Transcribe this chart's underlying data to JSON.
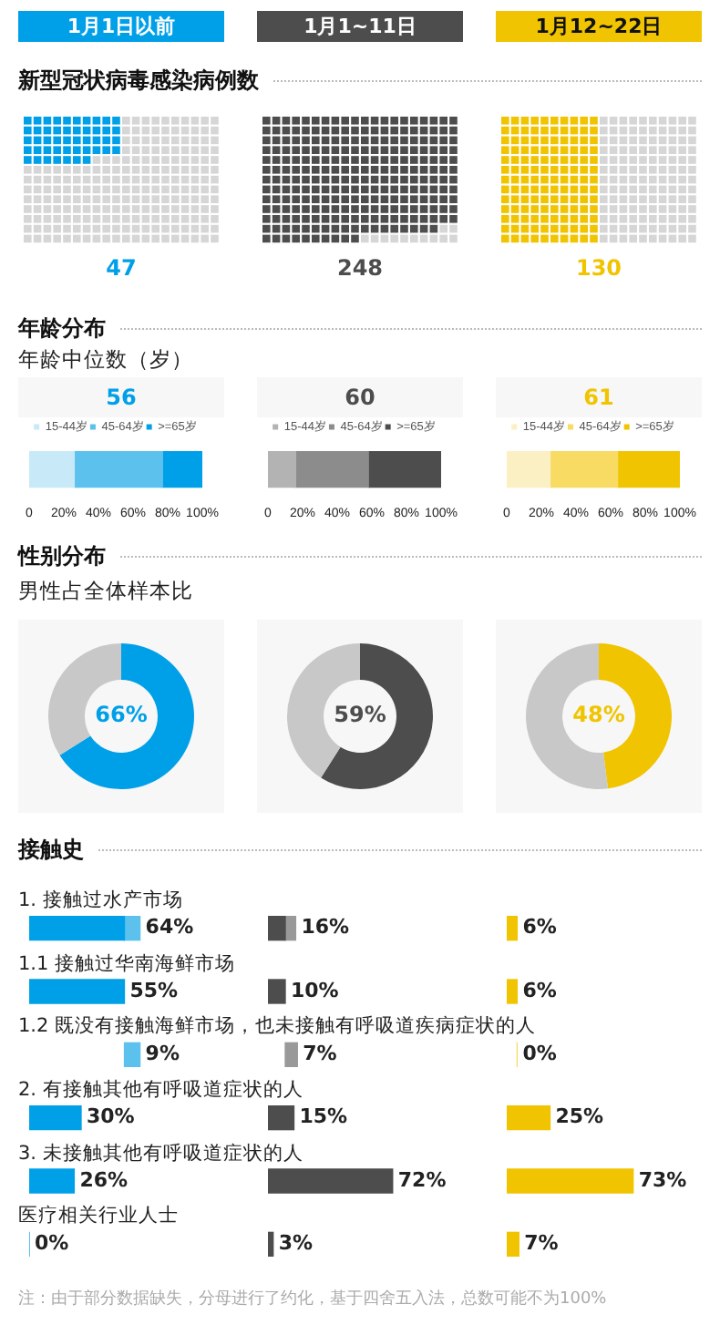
{
  "chart_data": [
    {
      "type": "other",
      "title": "新型冠状病毒感染病例数",
      "categories": [
        "1月1日以前",
        "1月1~11日",
        "1月12~22日"
      ],
      "values": [
        47,
        248,
        130
      ],
      "colors": [
        "#00a0e9",
        "#4d4d4d",
        "#f0c400"
      ],
      "data_labels": true
    },
    {
      "type": "bar",
      "orientation": "horizontal",
      "stacked": true,
      "title": "年龄分布",
      "subtitle": "年龄中位数（岁）",
      "annotations": [
        "56"
      ],
      "categories": [
        null
      ],
      "legend": "top",
      "xlim": [
        0,
        100
      ],
      "xticks": [
        {
          "value": 0,
          "label": "0"
        },
        {
          "value": 20,
          "label": "20%"
        },
        {
          "value": 40,
          "label": "40%"
        },
        {
          "value": 60,
          "label": "60%"
        },
        {
          "value": 80,
          "label": "80%"
        },
        {
          "value": 100,
          "label": "100%"
        }
      ],
      "series": [
        {
          "name": "15-44岁",
          "color": "#c8e9f8",
          "values": [
            26
          ]
        },
        {
          "name": "45-64岁",
          "color": "#5cc1ec",
          "values": [
            51
          ]
        },
        {
          "name": ">=65岁",
          "color": "#00a0e9",
          "values": [
            23
          ]
        }
      ]
    },
    {
      "type": "bar",
      "orientation": "horizontal",
      "stacked": true,
      "annotations": [
        "60"
      ],
      "categories": [
        null
      ],
      "legend": "top",
      "xlim": [
        0,
        100
      ],
      "xticks": [
        {
          "value": 0,
          "label": "0"
        },
        {
          "value": 20,
          "label": "20%"
        },
        {
          "value": 40,
          "label": "40%"
        },
        {
          "value": 60,
          "label": "60%"
        },
        {
          "value": 80,
          "label": "80%"
        },
        {
          "value": 100,
          "label": "100%"
        }
      ],
      "series": [
        {
          "name": "15-44岁",
          "color": "#b3b3b3",
          "values": [
            16
          ]
        },
        {
          "name": "45-64岁",
          "color": "#8c8c8c",
          "values": [
            42
          ]
        },
        {
          "name": ">=65岁",
          "color": "#4d4d4d",
          "values": [
            42
          ]
        }
      ]
    },
    {
      "type": "bar",
      "orientation": "horizontal",
      "stacked": true,
      "annotations": [
        "61"
      ],
      "categories": [
        null
      ],
      "legend": "top",
      "xlim": [
        0,
        100
      ],
      "xticks": [
        {
          "value": 0,
          "label": "0"
        },
        {
          "value": 20,
          "label": "20%"
        },
        {
          "value": 40,
          "label": "40%"
        },
        {
          "value": 60,
          "label": "60%"
        },
        {
          "value": 80,
          "label": "80%"
        },
        {
          "value": 100,
          "label": "100%"
        }
      ],
      "series": [
        {
          "name": "15-44岁",
          "color": "#fbefc4",
          "values": [
            25
          ]
        },
        {
          "name": "45-64岁",
          "color": "#f7db62",
          "values": [
            39
          ]
        },
        {
          "name": ">=65岁",
          "color": "#f0c400",
          "values": [
            36
          ]
        }
      ]
    },
    {
      "type": "donut",
      "title": "性别分布",
      "subtitle": "男性占全体样本比",
      "categories": [
        null,
        null
      ],
      "values": [
        66,
        34
      ],
      "colors": [
        "#00a0e9",
        "#c8c8c8"
      ],
      "value_labels": [
        "66%",
        null
      ]
    },
    {
      "type": "donut",
      "categories": [
        null,
        null
      ],
      "values": [
        59,
        41
      ],
      "colors": [
        "#4d4d4d",
        "#c8c8c8"
      ],
      "value_labels": [
        "59%",
        null
      ]
    },
    {
      "type": "donut",
      "categories": [
        null,
        null
      ],
      "values": [
        48,
        52
      ],
      "colors": [
        "#f0c400",
        "#c8c8c8"
      ],
      "value_labels": [
        "48%",
        null
      ]
    },
    {
      "type": "bar",
      "orientation": "horizontal",
      "title": "接触史",
      "categories": [
        "1. 接触过水产市场",
        "1.1 接触过华南海鲜市场",
        "1.2 既没有接触海鲜市场，也未接触有呼吸道疾病症状的人",
        "2. 有接触其他有呼吸道症状的人",
        "3. 未接触其他有呼吸道症状的人",
        "医疗相关行业人士"
      ],
      "xlim": [
        0,
        100
      ],
      "tick_labels": false,
      "totals": [
        "64%",
        "55%",
        "9%",
        "30%",
        "26%",
        "0%"
      ],
      "annotations": [
        "注：由于部分数据缺失，分母进行了约化，基于四舍五入法，总数可能不为100%"
      ],
      "series": [
        {
          "color": "#00a0e9",
          "values": [
            55,
            55,
            null,
            30,
            26,
            0
          ]
        },
        {
          "color": "#5cc1ec",
          "values": [
            9,
            null,
            9,
            null,
            null,
            null
          ],
          "base": [
            55,
            null,
            55,
            null,
            null,
            null
          ]
        }
      ]
    },
    {
      "type": "bar",
      "orientation": "horizontal",
      "categories": [
        null,
        null,
        null,
        null,
        null,
        null
      ],
      "xlim": [
        0,
        100
      ],
      "tick_labels": false,
      "totals": [
        "16%",
        "10%",
        "7%",
        "15%",
        "72%",
        "3%"
      ],
      "series": [
        {
          "color": "#4d4d4d",
          "values": [
            10,
            10,
            null,
            15,
            72,
            3
          ]
        },
        {
          "color": "#999999",
          "values": [
            6,
            null,
            7,
            null,
            null,
            null
          ],
          "base": [
            10,
            null,
            10,
            null,
            null,
            null
          ]
        }
      ]
    },
    {
      "type": "bar",
      "orientation": "horizontal",
      "categories": [
        null,
        null,
        null,
        null,
        null,
        null
      ],
      "xlim": [
        0,
        100
      ],
      "tick_labels": false,
      "totals": [
        "6%",
        "6%",
        "0%",
        "25%",
        "73%",
        "7%"
      ],
      "series": [
        {
          "color": "#f0c400",
          "values": [
            6,
            6,
            null,
            25,
            73,
            7
          ]
        },
        {
          "color": "#f7db62",
          "values": [
            null,
            null,
            0,
            null,
            null,
            null
          ],
          "base": [
            null,
            null,
            6,
            null,
            null,
            null
          ]
        }
      ]
    }
  ]
}
